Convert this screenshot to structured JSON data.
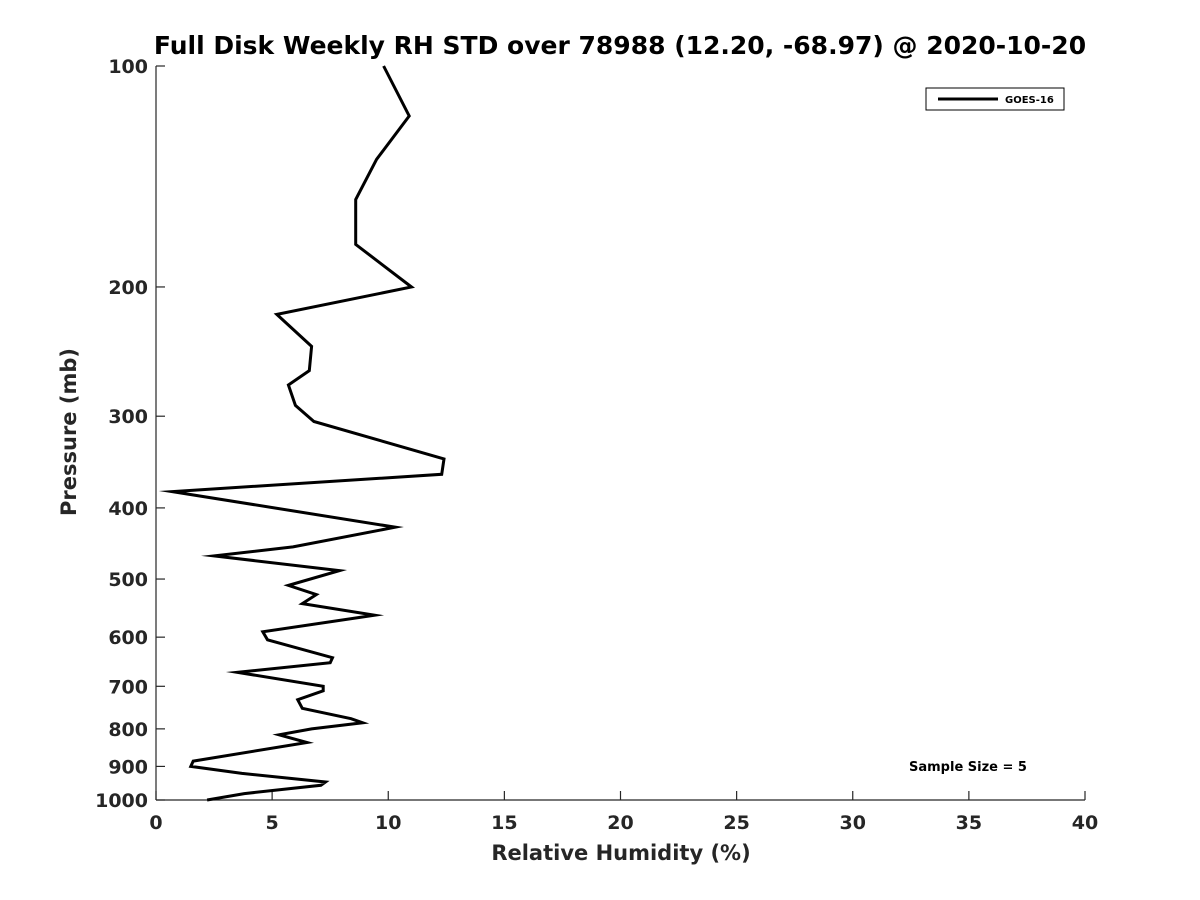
{
  "chart_data": {
    "type": "line",
    "title": "Full Disk Weekly RH STD over 78988 (12.20, -68.97) @ 2020-10-20",
    "xlabel": "Relative Humidity (%)",
    "ylabel": "Pressure (mb)",
    "xlim": [
      0,
      40
    ],
    "ylim": [
      100,
      1000
    ],
    "y_scale": "log",
    "y_reversed": true,
    "grid": false,
    "legend_position": "top-right",
    "x_ticks": [
      0,
      5,
      10,
      15,
      20,
      25,
      30,
      35,
      40
    ],
    "y_ticks": [
      100,
      200,
      300,
      400,
      500,
      600,
      700,
      800,
      900,
      1000
    ],
    "annotation": "Sample Size = 5",
    "series": [
      {
        "name": "GOES-16",
        "color": "#000000",
        "x": [
          9.8,
          10.9,
          9.5,
          8.6,
          8.6,
          8.6,
          11.0,
          5.2,
          6.7,
          6.6,
          5.7,
          6.0,
          6.8,
          12.4,
          12.3,
          0.7,
          10.3,
          5.9,
          2.5,
          7.9,
          5.7,
          6.9,
          6.3,
          9.4,
          4.6,
          4.8,
          7.6,
          7.5,
          3.5,
          7.2,
          7.2,
          6.1,
          6.3,
          8.4,
          8.9,
          6.7,
          5.3,
          6.5,
          1.6,
          1.5,
          3.7,
          7.3,
          7.1,
          3.8,
          2.2
        ],
        "y": [
          100,
          117,
          134,
          152,
          170,
          175,
          200,
          218,
          241,
          260,
          272,
          290,
          305,
          343,
          360,
          380,
          425,
          452,
          465,
          487,
          510,
          525,
          540,
          560,
          590,
          605,
          640,
          650,
          670,
          700,
          710,
          730,
          750,
          775,
          785,
          800,
          815,
          835,
          885,
          900,
          920,
          945,
          955,
          980,
          1000
        ]
      }
    ]
  }
}
